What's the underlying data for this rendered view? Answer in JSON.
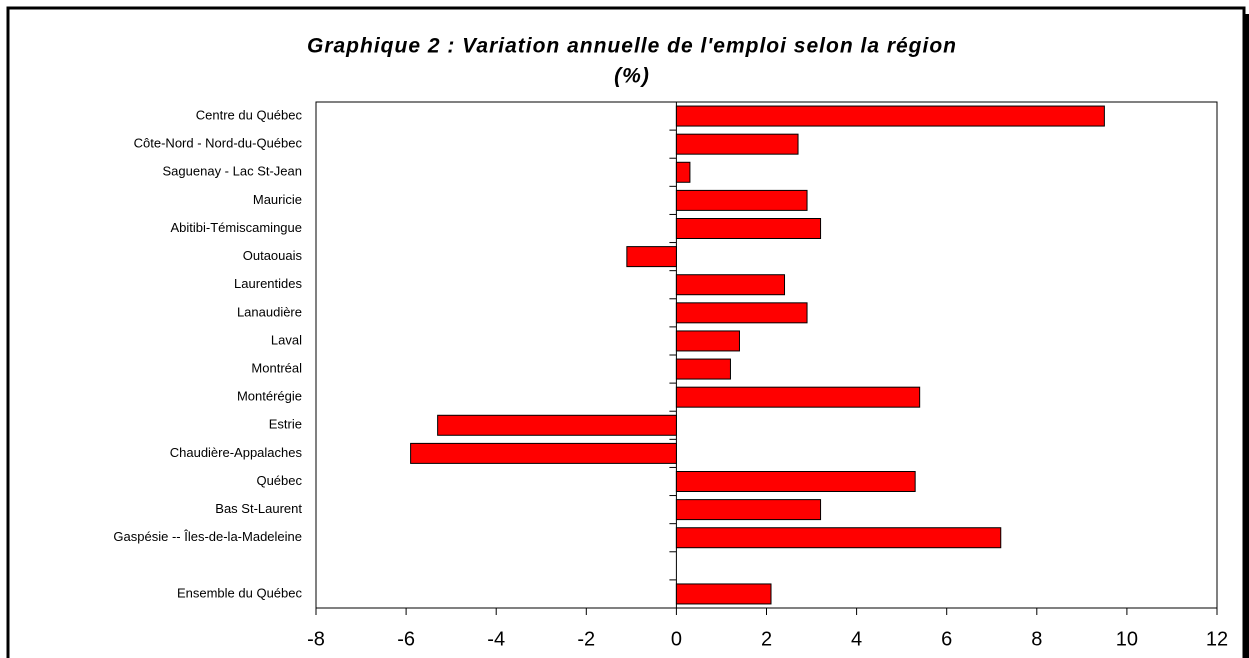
{
  "chart_data": {
    "type": "barh",
    "title": "Graphique 2 : Variation annuelle de l'emploi selon la région",
    "subtitle": "(%)",
    "categories": [
      "Centre du Québec",
      "Côte-Nord - Nord-du-Québec",
      "Saguenay - Lac St-Jean",
      "Mauricie",
      "Abitibi-Témiscamingue",
      "Outaouais",
      "Laurentides",
      "Lanaudière",
      "Laval",
      "Montréal",
      "Montérégie",
      "Estrie",
      "Chaudière-Appalaches",
      "Québec",
      "Bas St-Laurent",
      "Gaspésie -- Îles-de-la-Madeleine",
      null,
      "Ensemble du Québec"
    ],
    "values": [
      9.5,
      2.7,
      0.3,
      2.9,
      3.2,
      -1.1,
      2.4,
      2.9,
      1.4,
      1.2,
      5.4,
      -5.3,
      -5.9,
      5.3,
      3.2,
      7.2,
      null,
      2.1
    ],
    "color": "#ff0000",
    "xlim": [
      -8,
      12
    ],
    "xticks": [
      -8,
      -6,
      -4,
      -2,
      0,
      2,
      4,
      6,
      8,
      10,
      12
    ]
  }
}
